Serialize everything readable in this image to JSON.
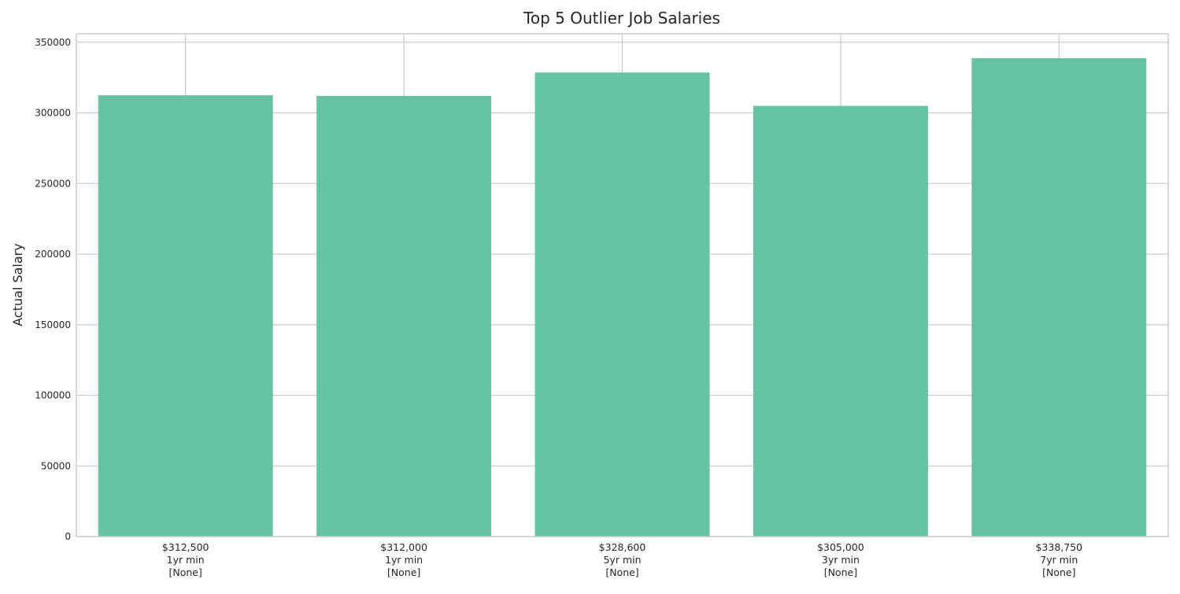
{
  "chart_data": {
    "type": "bar",
    "title": "Top 5 Outlier Job Salaries",
    "xlabel": "",
    "ylabel": "Actual Salary",
    "categories": [
      [
        "$312,500",
        "1yr min",
        "[None]"
      ],
      [
        "$312,000",
        "1yr min",
        "[None]"
      ],
      [
        "$328,600",
        "5yr min",
        "[None]"
      ],
      [
        "$305,000",
        "3yr min",
        "[None]"
      ],
      [
        "$338,750",
        "7yr min",
        "[None]"
      ]
    ],
    "values": [
      312500,
      312000,
      328600,
      305000,
      338750
    ],
    "ylim": [
      0,
      356000
    ],
    "yticks": [
      0,
      50000,
      100000,
      150000,
      200000,
      250000,
      300000,
      350000
    ],
    "grid": true,
    "colors": {
      "bar": "#66c2a5",
      "grid": "#cccccc",
      "frame": "#cccccc",
      "text": "#262626"
    }
  }
}
